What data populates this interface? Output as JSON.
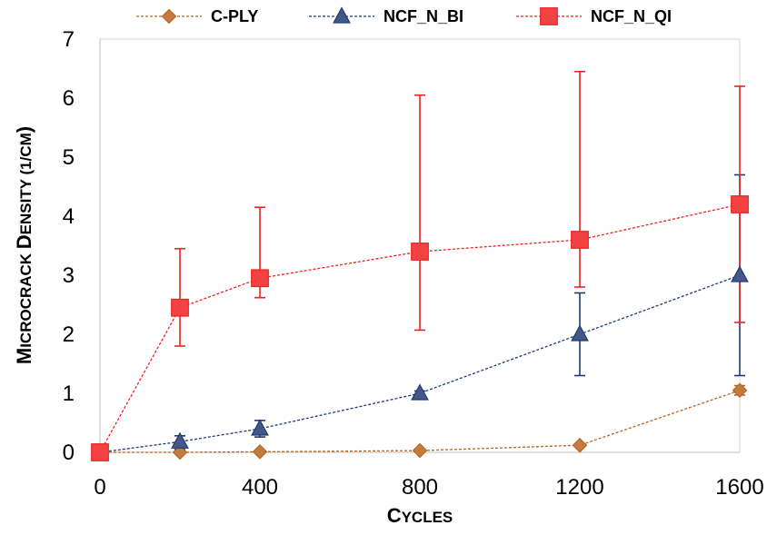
{
  "chart_data": {
    "type": "line",
    "title": "",
    "xlabel": {
      "big1": "C",
      "small": "YCLES"
    },
    "ylabel": {
      "big1": "M",
      "small1": "ICROCRACK ",
      "big2": "D",
      "small2": "ENSITY (1/",
      "small3": "CM",
      "big3": ")"
    },
    "xlim": [
      0,
      1600
    ],
    "ylim": [
      0,
      7
    ],
    "x_ticks": [
      0,
      400,
      800,
      1200,
      1600
    ],
    "y_ticks": [
      0,
      1,
      2,
      3,
      4,
      5,
      6,
      7
    ],
    "grid": false,
    "legend_position": "top",
    "series": [
      {
        "name": "C-PLY",
        "marker": "diamond",
        "color": "#B8651E",
        "points": [
          {
            "x": 0,
            "y": 0
          },
          {
            "x": 200,
            "y": 0.0
          },
          {
            "x": 400,
            "y": 0.01
          },
          {
            "x": 800,
            "y": 0.03
          },
          {
            "x": 1200,
            "y": 0.12
          },
          {
            "x": 1600,
            "y": 1.05,
            "err_low": 0.97,
            "err_high": 1.13
          }
        ]
      },
      {
        "name": "NCF_N_BI",
        "marker": "triangle",
        "color": "#1F3A73",
        "points": [
          {
            "x": 0,
            "y": 0
          },
          {
            "x": 200,
            "y": 0.18,
            "err_low": 0.05,
            "err_high": 0.28
          },
          {
            "x": 400,
            "y": 0.4,
            "err_low": 0.26,
            "err_high": 0.54
          },
          {
            "x": 800,
            "y": 1.0,
            "err_low": 0.96,
            "err_high": 1.04
          },
          {
            "x": 1200,
            "y": 2.0,
            "err_low": 1.3,
            "err_high": 2.7
          },
          {
            "x": 1600,
            "y": 3.0,
            "err_low": 1.3,
            "err_high": 4.7
          }
        ]
      },
      {
        "name": "NCF_N_QI",
        "marker": "square",
        "color": "#EE2222",
        "points": [
          {
            "x": 0,
            "y": 0
          },
          {
            "x": 200,
            "y": 2.45,
            "err_low": 1.8,
            "err_high": 3.45
          },
          {
            "x": 400,
            "y": 2.95,
            "err_low": 2.62,
            "err_high": 4.15
          },
          {
            "x": 800,
            "y": 3.4,
            "err_low": 2.07,
            "err_high": 6.05
          },
          {
            "x": 1200,
            "y": 3.6,
            "err_low": 2.8,
            "err_high": 6.45
          },
          {
            "x": 1600,
            "y": 4.2,
            "err_low": 2.2,
            "err_high": 6.2
          }
        ]
      }
    ]
  }
}
